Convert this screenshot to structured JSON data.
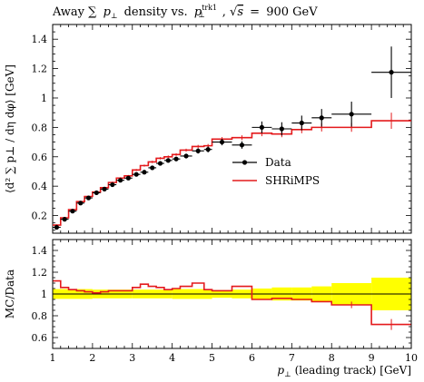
{
  "chart_data": [
    {
      "type": "line",
      "panel": "main",
      "title": "Away ∑ p⊥ density vs. p⊥trk1, √s = 900 GeV",
      "title_parts": {
        "lead": "Away ∑",
        "mid": "density vs.",
        "eq": "=",
        "energy": "900 GeV"
      },
      "ylabel": "⟨d² ∑ p⊥ / dη dφ⟩ [GeV]",
      "xlim": [
        1,
        10
      ],
      "ylim": [
        0.08,
        1.5
      ],
      "yticks": [
        "0.2",
        "0.4",
        "0.6",
        "0.8",
        "1",
        "1.2",
        "1.4"
      ],
      "legend_position": "center-right",
      "grid": false,
      "series": [
        {
          "name": "Data",
          "style": "points-with-errors",
          "color": "#000000",
          "points": [
            {
              "x": 1.1,
              "xlo": 1.0,
              "xhi": 1.2,
              "y": 0.12,
              "err": 0.01
            },
            {
              "x": 1.3,
              "xlo": 1.2,
              "xhi": 1.4,
              "y": 0.175,
              "err": 0.01
            },
            {
              "x": 1.5,
              "xlo": 1.4,
              "xhi": 1.6,
              "y": 0.23,
              "err": 0.01
            },
            {
              "x": 1.7,
              "xlo": 1.6,
              "xhi": 1.8,
              "y": 0.285,
              "err": 0.01
            },
            {
              "x": 1.9,
              "xlo": 1.8,
              "xhi": 2.0,
              "y": 0.32,
              "err": 0.01
            },
            {
              "x": 2.1,
              "xlo": 2.0,
              "xhi": 2.2,
              "y": 0.355,
              "err": 0.01
            },
            {
              "x": 2.3,
              "xlo": 2.2,
              "xhi": 2.4,
              "y": 0.38,
              "err": 0.01
            },
            {
              "x": 2.5,
              "xlo": 2.4,
              "xhi": 2.6,
              "y": 0.41,
              "err": 0.01
            },
            {
              "x": 2.7,
              "xlo": 2.6,
              "xhi": 2.8,
              "y": 0.44,
              "err": 0.01
            },
            {
              "x": 2.9,
              "xlo": 2.8,
              "xhi": 3.0,
              "y": 0.455,
              "err": 0.01
            },
            {
              "x": 3.1,
              "xlo": 3.0,
              "xhi": 3.2,
              "y": 0.48,
              "err": 0.012
            },
            {
              "x": 3.3,
              "xlo": 3.2,
              "xhi": 3.4,
              "y": 0.495,
              "err": 0.012
            },
            {
              "x": 3.5,
              "xlo": 3.4,
              "xhi": 3.6,
              "y": 0.525,
              "err": 0.013
            },
            {
              "x": 3.7,
              "xlo": 3.6,
              "xhi": 3.8,
              "y": 0.555,
              "err": 0.014
            },
            {
              "x": 3.9,
              "xlo": 3.8,
              "xhi": 4.0,
              "y": 0.575,
              "err": 0.015
            },
            {
              "x": 4.1,
              "xlo": 4.0,
              "xhi": 4.2,
              "y": 0.585,
              "err": 0.015
            },
            {
              "x": 4.35,
              "xlo": 4.2,
              "xhi": 4.5,
              "y": 0.605,
              "err": 0.016
            },
            {
              "x": 4.65,
              "xlo": 4.5,
              "xhi": 4.8,
              "y": 0.64,
              "err": 0.018
            },
            {
              "x": 4.9,
              "xlo": 4.8,
              "xhi": 5.0,
              "y": 0.65,
              "err": 0.02
            },
            {
              "x": 5.25,
              "xlo": 5.0,
              "xhi": 5.5,
              "y": 0.7,
              "err": 0.022
            },
            {
              "x": 5.75,
              "xlo": 5.5,
              "xhi": 6.0,
              "y": 0.68,
              "err": 0.025
            },
            {
              "x": 6.25,
              "xlo": 6.0,
              "xhi": 6.5,
              "y": 0.8,
              "err": 0.04
            },
            {
              "x": 6.75,
              "xlo": 6.5,
              "xhi": 7.0,
              "y": 0.79,
              "err": 0.045
            },
            {
              "x": 7.25,
              "xlo": 7.0,
              "xhi": 7.5,
              "y": 0.83,
              "err": 0.05
            },
            {
              "x": 7.75,
              "xlo": 7.5,
              "xhi": 8.0,
              "y": 0.865,
              "err": 0.06
            },
            {
              "x": 8.5,
              "xlo": 8.0,
              "xhi": 9.0,
              "y": 0.89,
              "err": 0.085
            },
            {
              "x": 9.5,
              "xlo": 9.0,
              "xhi": 10.0,
              "y": 1.175,
              "err": 0.175
            }
          ]
        },
        {
          "name": "SHRiMPS",
          "style": "step-histogram",
          "color": "#e41a1c",
          "bins": [
            {
              "xlo": 1.0,
              "xhi": 1.2,
              "y": 0.135,
              "err": 0.005
            },
            {
              "xlo": 1.2,
              "xhi": 1.4,
              "y": 0.185,
              "err": 0.005
            },
            {
              "xlo": 1.4,
              "xhi": 1.6,
              "y": 0.24,
              "err": 0.005
            },
            {
              "xlo": 1.6,
              "xhi": 1.8,
              "y": 0.295,
              "err": 0.005
            },
            {
              "xlo": 1.8,
              "xhi": 2.0,
              "y": 0.33,
              "err": 0.005
            },
            {
              "xlo": 2.0,
              "xhi": 2.2,
              "y": 0.36,
              "err": 0.005
            },
            {
              "xlo": 2.2,
              "xhi": 2.4,
              "y": 0.39,
              "err": 0.005
            },
            {
              "xlo": 2.4,
              "xhi": 2.6,
              "y": 0.425,
              "err": 0.006
            },
            {
              "xlo": 2.6,
              "xhi": 2.8,
              "y": 0.455,
              "err": 0.006
            },
            {
              "xlo": 2.8,
              "xhi": 3.0,
              "y": 0.47,
              "err": 0.006
            },
            {
              "xlo": 3.0,
              "xhi": 3.2,
              "y": 0.51,
              "err": 0.007
            },
            {
              "xlo": 3.2,
              "xhi": 3.4,
              "y": 0.54,
              "err": 0.007
            },
            {
              "xlo": 3.4,
              "xhi": 3.6,
              "y": 0.565,
              "err": 0.008
            },
            {
              "xlo": 3.6,
              "xhi": 3.8,
              "y": 0.59,
              "err": 0.008
            },
            {
              "xlo": 3.8,
              "xhi": 4.0,
              "y": 0.6,
              "err": 0.009
            },
            {
              "xlo": 4.0,
              "xhi": 4.2,
              "y": 0.615,
              "err": 0.009
            },
            {
              "xlo": 4.2,
              "xhi": 4.5,
              "y": 0.645,
              "err": 0.01
            },
            {
              "xlo": 4.5,
              "xhi": 4.8,
              "y": 0.67,
              "err": 0.011
            },
            {
              "xlo": 4.8,
              "xhi": 5.0,
              "y": 0.675,
              "err": 0.012
            },
            {
              "xlo": 5.0,
              "xhi": 5.5,
              "y": 0.72,
              "err": 0.014
            },
            {
              "xlo": 5.5,
              "xhi": 6.0,
              "y": 0.73,
              "err": 0.016
            },
            {
              "xlo": 6.0,
              "xhi": 6.5,
              "y": 0.76,
              "err": 0.02
            },
            {
              "xlo": 6.5,
              "xhi": 7.0,
              "y": 0.755,
              "err": 0.022
            },
            {
              "xlo": 7.0,
              "xhi": 7.5,
              "y": 0.785,
              "err": 0.025
            },
            {
              "xlo": 7.5,
              "xhi": 8.0,
              "y": 0.8,
              "err": 0.028
            },
            {
              "xlo": 8.0,
              "xhi": 9.0,
              "y": 0.8,
              "err": 0.03
            },
            {
              "xlo": 9.0,
              "xhi": 10.0,
              "y": 0.845,
              "err": 0.055
            }
          ]
        }
      ]
    },
    {
      "type": "line",
      "panel": "ratio",
      "xlabel": "p⊥ (leading track) [GeV]",
      "xlabel_rest": "(leading track) [GeV]",
      "ylabel": "MC/Data",
      "xlim": [
        1,
        10
      ],
      "ylim": [
        0.5,
        1.5
      ],
      "xticks": [
        "1",
        "2",
        "3",
        "4",
        "5",
        "6",
        "7",
        "8",
        "9",
        "10"
      ],
      "yticks": [
        "0.6",
        "0.8",
        "1",
        "1.2",
        "1.4"
      ],
      "reference_line": 1,
      "band": {
        "name": "Data uncertainty",
        "color": "#ffff00",
        "bins": [
          {
            "xlo": 1.0,
            "xhi": 2.0,
            "lo": 0.955,
            "hi": 1.045
          },
          {
            "xlo": 2.0,
            "xhi": 3.0,
            "lo": 0.96,
            "hi": 1.04
          },
          {
            "xlo": 3.0,
            "xhi": 4.0,
            "lo": 0.96,
            "hi": 1.04
          },
          {
            "xlo": 4.0,
            "xhi": 5.0,
            "lo": 0.955,
            "hi": 1.045
          },
          {
            "xlo": 5.0,
            "xhi": 5.5,
            "lo": 0.965,
            "hi": 1.035
          },
          {
            "xlo": 5.5,
            "xhi": 6.0,
            "lo": 0.96,
            "hi": 1.04
          },
          {
            "xlo": 6.0,
            "xhi": 6.5,
            "lo": 0.95,
            "hi": 1.05
          },
          {
            "xlo": 6.5,
            "xhi": 7.0,
            "lo": 0.94,
            "hi": 1.06
          },
          {
            "xlo": 7.0,
            "xhi": 7.5,
            "lo": 0.94,
            "hi": 1.06
          },
          {
            "xlo": 7.5,
            "xhi": 8.0,
            "lo": 0.93,
            "hi": 1.07
          },
          {
            "xlo": 8.0,
            "xhi": 9.0,
            "lo": 0.9,
            "hi": 1.1
          },
          {
            "xlo": 9.0,
            "xhi": 10.0,
            "lo": 0.85,
            "hi": 1.15
          }
        ]
      },
      "series": [
        {
          "name": "SHRiMPS",
          "color": "#e41a1c",
          "bins": [
            {
              "xlo": 1.0,
              "xhi": 1.2,
              "y": 1.12
            },
            {
              "xlo": 1.2,
              "xhi": 1.4,
              "y": 1.06
            },
            {
              "xlo": 1.4,
              "xhi": 1.6,
              "y": 1.04
            },
            {
              "xlo": 1.6,
              "xhi": 1.8,
              "y": 1.03
            },
            {
              "xlo": 1.8,
              "xhi": 2.0,
              "y": 1.02
            },
            {
              "xlo": 2.0,
              "xhi": 2.2,
              "y": 1.01
            },
            {
              "xlo": 2.2,
              "xhi": 2.4,
              "y": 1.02
            },
            {
              "xlo": 2.4,
              "xhi": 2.6,
              "y": 1.03
            },
            {
              "xlo": 2.6,
              "xhi": 2.8,
              "y": 1.03
            },
            {
              "xlo": 2.8,
              "xhi": 3.0,
              "y": 1.03
            },
            {
              "xlo": 3.0,
              "xhi": 3.2,
              "y": 1.06
            },
            {
              "xlo": 3.2,
              "xhi": 3.4,
              "y": 1.09
            },
            {
              "xlo": 3.4,
              "xhi": 3.6,
              "y": 1.07
            },
            {
              "xlo": 3.6,
              "xhi": 3.8,
              "y": 1.06
            },
            {
              "xlo": 3.8,
              "xhi": 4.0,
              "y": 1.04
            },
            {
              "xlo": 4.0,
              "xhi": 4.2,
              "y": 1.05
            },
            {
              "xlo": 4.2,
              "xhi": 4.5,
              "y": 1.07
            },
            {
              "xlo": 4.5,
              "xhi": 4.8,
              "y": 1.1
            },
            {
              "xlo": 4.8,
              "xhi": 5.0,
              "y": 1.04
            },
            {
              "xlo": 5.0,
              "xhi": 5.5,
              "y": 1.03
            },
            {
              "xlo": 5.5,
              "xhi": 6.0,
              "y": 1.07
            },
            {
              "xlo": 6.0,
              "xhi": 6.5,
              "y": 0.95
            },
            {
              "xlo": 6.5,
              "xhi": 7.0,
              "y": 0.96
            },
            {
              "xlo": 7.0,
              "xhi": 7.5,
              "y": 0.95
            },
            {
              "xlo": 7.5,
              "xhi": 8.0,
              "y": 0.93
            },
            {
              "xlo": 8.0,
              "xhi": 9.0,
              "y": 0.9
            },
            {
              "xlo": 9.0,
              "xhi": 10.0,
              "y": 0.72
            }
          ],
          "errbars": [
            {
              "x": 8.5,
              "err": 0.03
            },
            {
              "x": 9.5,
              "err": 0.05
            }
          ]
        }
      ]
    }
  ]
}
